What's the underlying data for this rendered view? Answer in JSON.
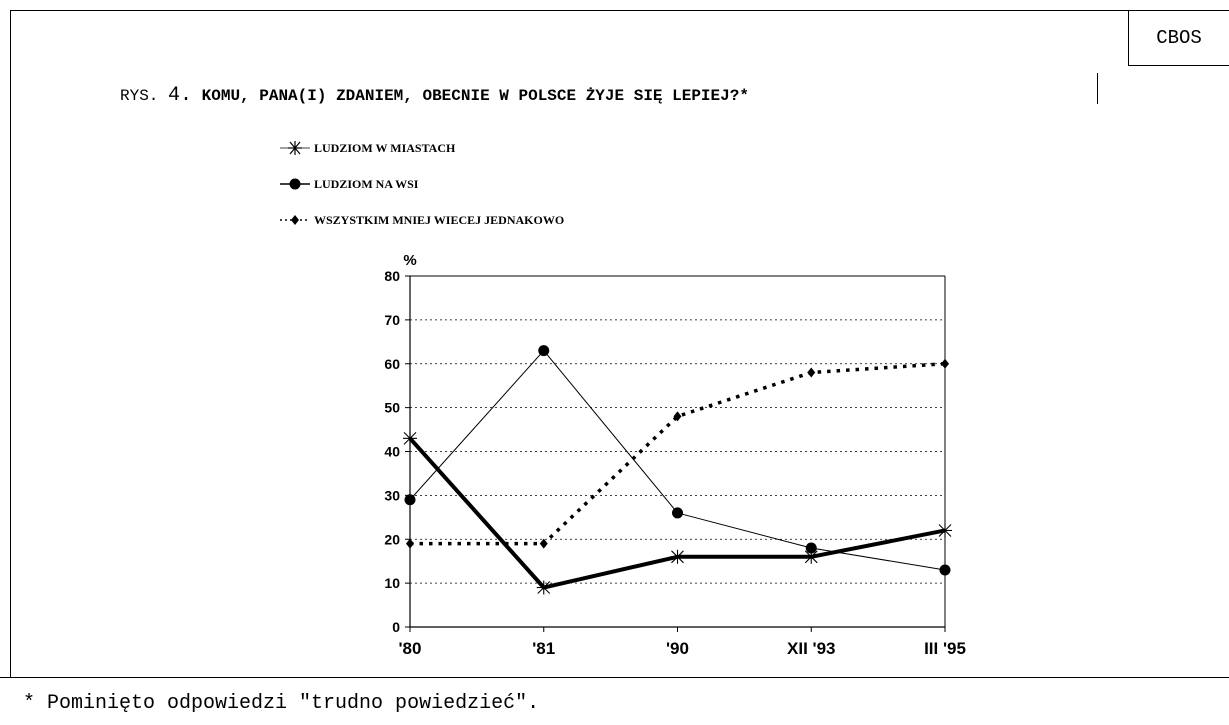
{
  "header": {
    "badge": "CBOS",
    "title_prefix": "RYS.",
    "title_number": "4.",
    "title_question": "KOMU, PANA(I) ZDANIEM, OBECNIE W POLSCE ŻYJE SIĘ LEPIEJ?*"
  },
  "footnote": "* Pominięto odpowiedzi \"trudno powiedzieć\".",
  "chart_data": {
    "type": "line",
    "title": "",
    "xlabel": "",
    "ylabel": "%",
    "ylim": [
      0,
      80
    ],
    "yticks": [
      0,
      10,
      20,
      30,
      40,
      50,
      60,
      70,
      80
    ],
    "categories": [
      "'80",
      "'81",
      "'90",
      "XII '93",
      "III '95"
    ],
    "grid": true,
    "legend_position": "top-left",
    "series": [
      {
        "name": "LUDZIOM W MIASTACH",
        "marker": "asterisk",
        "line": "thick-solid",
        "values": [
          43,
          9,
          16,
          16,
          22
        ]
      },
      {
        "name": "LUDZIOM NA WSI",
        "marker": "circle",
        "line": "thin-solid",
        "values": [
          29,
          63,
          26,
          18,
          13
        ]
      },
      {
        "name": "WSZYSTKIM MNIEJ WIECEJ JEDNAKOWO",
        "marker": "diamond",
        "line": "dotted",
        "values": [
          19,
          19,
          48,
          58,
          60
        ]
      }
    ]
  }
}
